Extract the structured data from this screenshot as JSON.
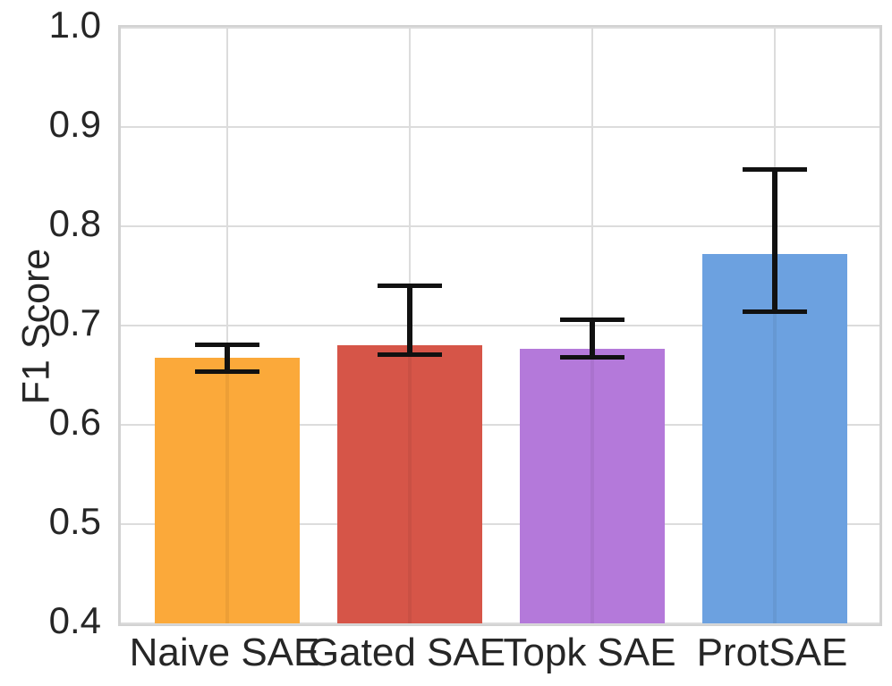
{
  "chart_data": {
    "type": "bar",
    "title": "",
    "xlabel": "",
    "ylabel": "F1 Score",
    "categories": [
      "Naive SAE",
      "Gated SAE",
      "Topk SAE",
      "ProtSAE"
    ],
    "values": [
      0.668,
      0.68,
      0.677,
      0.772
    ],
    "error_low": [
      0.654,
      0.671,
      0.668,
      0.714
    ],
    "error_high": [
      0.681,
      0.74,
      0.706,
      0.857
    ],
    "bar_colors": [
      "#FBA93A",
      "#D65548",
      "#B479DA",
      "#6CA1E0"
    ],
    "error_bar_color": "#111111",
    "ylim": [
      0.4,
      1.0
    ],
    "yticks": [
      0.4,
      0.5,
      0.6,
      0.7,
      0.8,
      0.9,
      1.0
    ],
    "ytick_labels": [
      "0.4",
      "0.5",
      "0.6",
      "0.7",
      "0.8",
      "0.9",
      "1.0"
    ],
    "grid": "on",
    "grid_color": "#dcdcdc",
    "legend_position": "none"
  }
}
